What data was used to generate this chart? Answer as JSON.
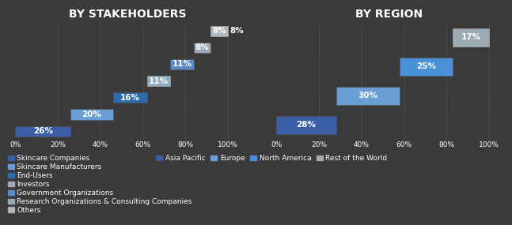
{
  "bg_color": "#3a3a3a",
  "text_color": "#ffffff",
  "left_title": "BY STAKEHOLDERS",
  "left_bars": [
    {
      "label": "Skincare Companies",
      "value": 26,
      "color": "#3b5ea6",
      "hatch": null
    },
    {
      "label": "Skincare Manufacturers",
      "value": 20,
      "color": "#6b9fd4",
      "hatch": null
    },
    {
      "label": "End-Users",
      "value": 16,
      "color": "#2b6cb0",
      "hatch": null
    },
    {
      "label": "Investors",
      "value": 11,
      "color": "#8aafc8",
      "hatch": "...."
    },
    {
      "label": "Government Organizations",
      "value": 11,
      "color": "#5b8bc7",
      "hatch": null
    },
    {
      "label": "Research Organizations & Consulting Companies",
      "value": 8,
      "color": "#9aabb8",
      "hatch": null
    },
    {
      "label": "Others",
      "value": 8,
      "color": "#b0bec5",
      "hatch": "...."
    }
  ],
  "right_title": "BY REGION",
  "right_bars": [
    {
      "label": "Asia Pacific",
      "value": 28,
      "color": "#3b5ea6",
      "hatch": null
    },
    {
      "label": "Europe",
      "value": 30,
      "color": "#6b9fd4",
      "hatch": null
    },
    {
      "label": "North America",
      "value": 25,
      "color": "#4a90d9",
      "hatch": null
    },
    {
      "label": "Rest of the World",
      "value": 17,
      "color": "#9aabb8",
      "hatch": "...."
    }
  ],
  "legend_fontsize": 6.5,
  "bar_height": 0.62,
  "label_fontsize": 7.5,
  "title_fontsize": 10
}
